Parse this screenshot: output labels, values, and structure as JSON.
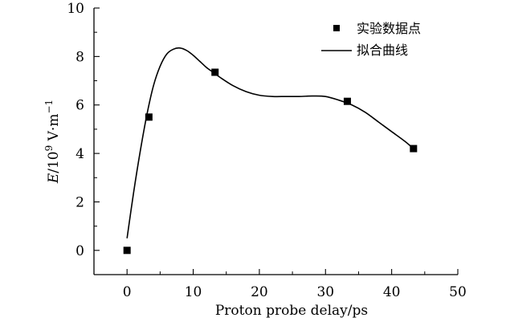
{
  "chart_data": {
    "type": "scatter",
    "title": "",
    "xlabel": "Proton probe delay/ps",
    "ylabel_var": "E",
    "ylabel_unit": "/10",
    "ylabel_exp": "9",
    "ylabel_tail": " V·m",
    "ylabel_tail_exp": "−1",
    "xlim": [
      -5,
      50
    ],
    "ylim": [
      -1,
      10
    ],
    "xticks": [
      0,
      10,
      20,
      30,
      40,
      50
    ],
    "yticks": [
      0,
      2,
      4,
      6,
      8,
      10
    ],
    "legend_position": "top-right",
    "grid": false,
    "series": [
      {
        "name": "实验数据点",
        "kind": "points",
        "x": [
          0,
          3.3,
          13.3,
          33.3,
          43.3
        ],
        "y": [
          0,
          5.5,
          7.35,
          6.15,
          4.2
        ]
      },
      {
        "name": "拟合曲线",
        "kind": "line",
        "x": [
          0,
          1,
          2,
          3,
          4,
          5,
          6,
          7,
          8,
          9,
          10,
          11,
          12,
          13,
          14,
          16,
          18,
          20,
          22,
          24,
          26,
          28,
          30,
          32,
          34,
          36,
          38,
          40,
          42,
          43.3
        ],
        "y": [
          0.5,
          2.4,
          4.1,
          5.6,
          6.8,
          7.6,
          8.1,
          8.3,
          8.35,
          8.25,
          8.05,
          7.8,
          7.55,
          7.35,
          7.15,
          6.8,
          6.55,
          6.4,
          6.35,
          6.35,
          6.35,
          6.37,
          6.35,
          6.2,
          6.0,
          5.7,
          5.3,
          4.9,
          4.5,
          4.2
        ]
      }
    ]
  },
  "colors": {
    "axis": "#000000",
    "marker": "#000000",
    "line": "#000000"
  }
}
